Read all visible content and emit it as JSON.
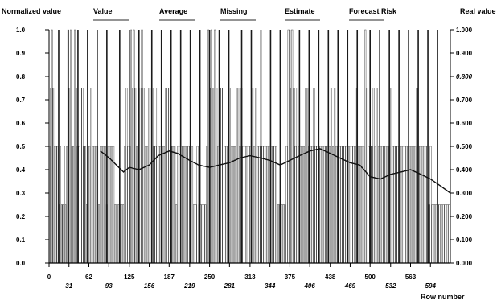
{
  "chart_data": {
    "type": "bar",
    "title": "",
    "y_left_label": "Normalized value",
    "y_right_label": "Real value",
    "x_label": "Row number",
    "legend": [
      "Value",
      "Average",
      "Missing",
      "Estimate",
      "Forecast Risk"
    ],
    "legend_placement": "top",
    "left_ticks": [
      "0.0",
      "0.1",
      "0.2",
      "0.3",
      "0.4",
      "0.5",
      "0.6",
      "0.7",
      "0.8",
      "0.9",
      "1.0"
    ],
    "right_ticks": [
      "0.000",
      "0.100",
      "0.200",
      "0.300",
      "0.400",
      "0.500",
      "0.600",
      "0.700",
      "0.800",
      "0.900",
      "1.000"
    ],
    "x_ticks_upper": [
      "0",
      "62",
      "125",
      "187",
      "250",
      "313",
      "375",
      "438",
      "500",
      "563"
    ],
    "x_ticks_lower": [
      "31",
      "93",
      "156",
      "219",
      "281",
      "344",
      "406",
      "469",
      "532",
      "594"
    ],
    "ylim": [
      0,
      1
    ],
    "xlim": [
      0,
      625
    ],
    "grid": false,
    "bar_groups": [
      {
        "x0": 0,
        "x1": 10,
        "values": [
          0.5,
          0.75,
          1.0,
          0.75,
          0.5
        ]
      },
      {
        "x0": 10,
        "x1": 19,
        "values": [
          0.5,
          0.5,
          0.25,
          0.5
        ]
      },
      {
        "x0": 19,
        "x1": 27,
        "values": [
          0.25,
          0.25,
          0.5,
          0.25
        ]
      },
      {
        "x0": 27,
        "x1": 37,
        "values": [
          0.5,
          1.0,
          0.75,
          1.0,
          0.5
        ]
      },
      {
        "x0": 37,
        "x1": 46,
        "values": [
          0.5,
          1.0,
          0.75,
          0.5
        ]
      },
      {
        "x0": 46,
        "x1": 56,
        "values": [
          0.5,
          0.75,
          0.75,
          0.5
        ]
      },
      {
        "x0": 56,
        "x1": 62,
        "values": [
          0.5,
          0.25,
          0.5
        ]
      },
      {
        "x0": 62,
        "x1": 72,
        "values": [
          0.5,
          0.75,
          0.5,
          0.5
        ]
      },
      {
        "x0": 72,
        "x1": 84,
        "values": [
          0.5,
          0.5,
          0.25,
          0.5,
          0.5
        ]
      },
      {
        "x0": 84,
        "x1": 94,
        "values": [
          0.5,
          0.5,
          0.25,
          0.5
        ]
      },
      {
        "x0": 94,
        "x1": 102,
        "values": [
          0.5,
          0.5,
          0.5
        ]
      },
      {
        "x0": 102,
        "x1": 117,
        "values": [
          0.25,
          0.25,
          0.25,
          0.25,
          0.25,
          0.25
        ]
      },
      {
        "x0": 117,
        "x1": 125,
        "values": [
          0.5,
          0.75,
          0.5
        ]
      },
      {
        "x0": 125,
        "x1": 138,
        "values": [
          0.5,
          1.0,
          0.75,
          1.0,
          0.75,
          0.5
        ]
      },
      {
        "x0": 138,
        "x1": 152,
        "values": [
          0.5,
          0.75,
          1.0,
          0.75,
          0.5
        ]
      },
      {
        "x0": 152,
        "x1": 165,
        "values": [
          0.5,
          0.75,
          0.75,
          0.75,
          0.5
        ]
      },
      {
        "x0": 165,
        "x1": 178,
        "values": [
          0.5,
          0.75,
          0.5,
          0.5,
          0.5
        ]
      },
      {
        "x0": 178,
        "x1": 192,
        "values": [
          0.5,
          0.75,
          0.75,
          0.75,
          0.5
        ]
      },
      {
        "x0": 192,
        "x1": 205,
        "values": [
          0.5,
          0.5,
          0.25,
          0.5,
          0.5
        ]
      },
      {
        "x0": 205,
        "x1": 219,
        "values": [
          0.5,
          0.5,
          0.5,
          0.5,
          0.5
        ]
      },
      {
        "x0": 219,
        "x1": 233,
        "values": [
          0.5,
          0.5,
          0.25,
          0.25,
          0.5
        ]
      },
      {
        "x0": 233,
        "x1": 245,
        "values": [
          0.25,
          0.25,
          0.25,
          0.25,
          0.25
        ]
      },
      {
        "x0": 245,
        "x1": 252,
        "values": [
          0.5,
          1.0,
          0.75
        ]
      },
      {
        "x0": 252,
        "x1": 265,
        "values": [
          1.0,
          0.75,
          1.0,
          0.75,
          0.5
        ]
      },
      {
        "x0": 265,
        "x1": 278,
        "values": [
          0.75,
          0.75,
          0.75,
          0.5,
          0.5
        ]
      },
      {
        "x0": 278,
        "x1": 291,
        "values": [
          0.5,
          0.75,
          0.5,
          0.5,
          0.5
        ]
      },
      {
        "x0": 291,
        "x1": 304,
        "values": [
          0.75,
          0.75,
          0.5,
          0.75,
          0.5
        ]
      },
      {
        "x0": 304,
        "x1": 316,
        "values": [
          0.5,
          0.5,
          0.5,
          0.5
        ]
      },
      {
        "x0": 316,
        "x1": 329,
        "values": [
          0.75,
          0.5,
          0.75,
          0.5,
          0.5
        ]
      },
      {
        "x0": 329,
        "x1": 342,
        "values": [
          0.5,
          0.5,
          0.5,
          0.5,
          0.5
        ]
      },
      {
        "x0": 342,
        "x1": 356,
        "values": [
          0.5,
          0.5,
          0.5,
          0.5,
          0.5
        ]
      },
      {
        "x0": 356,
        "x1": 369,
        "values": [
          0.25,
          0.25,
          0.25,
          0.25,
          0.25
        ]
      },
      {
        "x0": 369,
        "x1": 383,
        "values": [
          0.5,
          1.0,
          0.75,
          1.0,
          0.75
        ]
      },
      {
        "x0": 383,
        "x1": 396,
        "values": [
          0.5,
          0.75,
          0.5,
          0.5,
          0.5
        ]
      },
      {
        "x0": 396,
        "x1": 409,
        "values": [
          0.5,
          0.75,
          0.75,
          0.5,
          0.5
        ]
      },
      {
        "x0": 409,
        "x1": 422,
        "values": [
          0.5,
          0.75,
          0.5,
          0.5,
          0.5
        ]
      },
      {
        "x0": 422,
        "x1": 436,
        "values": [
          0.5,
          0.5,
          0.5,
          0.5,
          0.5
        ]
      },
      {
        "x0": 436,
        "x1": 449,
        "values": [
          0.5,
          0.75,
          0.5,
          0.75,
          0.5
        ]
      },
      {
        "x0": 449,
        "x1": 462,
        "values": [
          0.5,
          0.5,
          0.5,
          0.5,
          0.5
        ]
      },
      {
        "x0": 462,
        "x1": 476,
        "values": [
          0.5,
          0.5,
          0.5,
          0.5,
          0.5
        ]
      },
      {
        "x0": 476,
        "x1": 489,
        "values": [
          0.5,
          0.75,
          0.5,
          0.5,
          0.5
        ]
      },
      {
        "x0": 489,
        "x1": 502,
        "values": [
          0.5,
          1.0,
          0.75,
          0.5,
          0.5
        ]
      },
      {
        "x0": 502,
        "x1": 515,
        "values": [
          0.5,
          0.75,
          0.5,
          0.75,
          0.5
        ]
      },
      {
        "x0": 515,
        "x1": 529,
        "values": [
          0.5,
          0.5,
          0.5,
          0.5,
          0.5
        ]
      },
      {
        "x0": 529,
        "x1": 542,
        "values": [
          0.5,
          0.75,
          0.5,
          0.5,
          0.5
        ]
      },
      {
        "x0": 542,
        "x1": 556,
        "values": [
          0.5,
          0.5,
          0.5,
          0.5,
          0.5
        ]
      },
      {
        "x0": 556,
        "x1": 569,
        "values": [
          0.5,
          0.5,
          0.5,
          0.5,
          0.5
        ]
      },
      {
        "x0": 569,
        "x1": 583,
        "values": [
          0.5,
          0.75,
          0.5,
          0.5,
          0.5
        ]
      },
      {
        "x0": 583,
        "x1": 596,
        "values": [
          0.5,
          0.5,
          0.5,
          0.25,
          0.5
        ]
      },
      {
        "x0": 596,
        "x1": 610,
        "values": [
          0.25,
          0.25,
          0.25,
          0.25,
          0.25
        ]
      },
      {
        "x0": 610,
        "x1": 625,
        "values": [
          0.25,
          0.25,
          0.25,
          0.25,
          0.25
        ]
      }
    ],
    "dividers": [
      15,
      30,
      45,
      60,
      75,
      90,
      110,
      125,
      140,
      160,
      175,
      190,
      205,
      220,
      235,
      250,
      265,
      280,
      300,
      315,
      330,
      345,
      360,
      375,
      390,
      405,
      420,
      435,
      450,
      465,
      480,
      500,
      515,
      530,
      545,
      560,
      575,
      590,
      605
    ],
    "series": [
      {
        "name": "Average",
        "x": [
          80,
          94,
          105,
          116,
          125,
          140,
          156,
          170,
          187,
          200,
          219,
          233,
          250,
          265,
          281,
          297,
          313,
          330,
          344,
          360,
          375,
          390,
          406,
          422,
          438,
          453,
          469,
          484,
          500,
          516,
          532,
          548,
          563,
          579,
          594,
          610,
          625
        ],
        "values": [
          0.48,
          0.45,
          0.42,
          0.39,
          0.41,
          0.4,
          0.42,
          0.46,
          0.48,
          0.47,
          0.44,
          0.42,
          0.41,
          0.42,
          0.43,
          0.45,
          0.46,
          0.45,
          0.44,
          0.42,
          0.44,
          0.46,
          0.48,
          0.49,
          0.47,
          0.45,
          0.43,
          0.42,
          0.37,
          0.36,
          0.38,
          0.39,
          0.4,
          0.38,
          0.36,
          0.33,
          0.3
        ]
      }
    ]
  }
}
